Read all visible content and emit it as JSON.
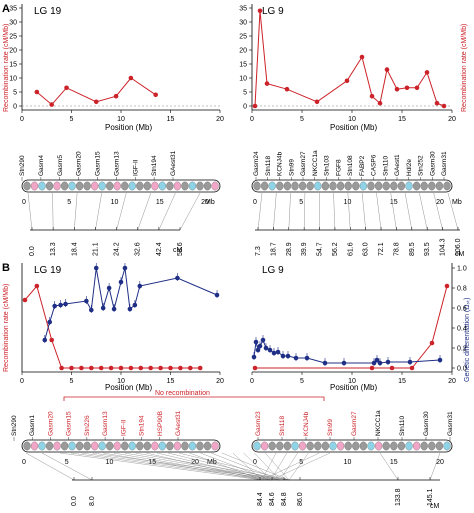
{
  "figure": {
    "panelA": {
      "label": "A",
      "left": {
        "title": "LG 19",
        "ylabel": "Recombination rate (cM/Mb)",
        "xlabel": "Position (Mb)",
        "markers": [
          "Stn290",
          "Gasm4",
          "Gasm5",
          "Gasm20",
          "Gasm15",
          "Gasm13",
          "IGF-II",
          "Stn194",
          "GAest31"
        ],
        "cm": [
          "0.0",
          "13.3",
          "18.4",
          "21.1",
          "24.2",
          "32.6",
          "42.4",
          "58.6"
        ],
        "cm_unit": "cM",
        "mb_unit": "Mb"
      },
      "right": {
        "title": "LG 9",
        "ylabel": "Recombination rate (cM/Mb)",
        "xlabel": "Position (Mb)",
        "markers": [
          "Gasm24",
          "Stn118",
          "KCNJ4b",
          "Stn99",
          "Gasm27",
          "NKCC1a",
          "Stn103",
          "FGF8",
          "Stn108",
          "FABP2",
          "CASP6",
          "Stn110",
          "GAest1",
          "Hdl2e",
          "Stn252",
          "Gasm30",
          "Gasm31"
        ],
        "cm": [
          "7.3",
          "18.7",
          "28.9",
          "39.9",
          "54.7",
          "56.2",
          "61.6",
          "63.0",
          "72.1",
          "78.8",
          "89.5",
          "93.5",
          "104.3",
          "106.0"
        ],
        "cm_unit": "cM",
        "mb_unit": "Mb"
      }
    },
    "panelB": {
      "label": "B",
      "left": {
        "title": "LG 19",
        "ylabel": "Recombination rate (cM/Mb)",
        "xlabel": "Position (Mb)"
      },
      "right": {
        "title": "LG 9",
        "ylabel_right": "Genetic differentiation (Ωₛₜ)",
        "xlabel": "Position (Mb)"
      },
      "no_recombination": "No recombination",
      "markers_left": [
        "Stn290",
        "Gasm1",
        "Gasm20",
        "Gasm15",
        "Stn226",
        "Gasm13",
        "IGF-II",
        "Stn194",
        "HSP90B",
        "GAest31"
      ],
      "markers_right": [
        "Gasm23",
        "Stn118",
        "KCNJ4b",
        "Stn99",
        "Gasm27",
        "NKCC1a",
        "Stn110",
        "Gasm30",
        "Gasm31"
      ],
      "cm": [
        "0.0",
        "8.0",
        "84.4",
        "84.6",
        "84.8",
        "86.0",
        "133.8",
        "145.1"
      ],
      "cm_unit": "cM",
      "mb_unit": "Mb"
    }
  },
  "chart_data": [
    {
      "type": "line",
      "panel": "A",
      "title": "LG 19",
      "xlabel": "Position (Mb)",
      "ylabel": "Recombination rate (cM/Mb)",
      "xlim": [
        0,
        20
      ],
      "ylim": [
        0,
        35
      ],
      "series": [
        {
          "x": [
            1.5,
            3,
            4.5,
            7.5,
            9.5,
            11,
            13.5
          ],
          "y": [
            5,
            0.5,
            6.5,
            1.5,
            3.5,
            10,
            4
          ],
          "color": "#cc2229"
        }
      ]
    },
    {
      "type": "line",
      "panel": "A",
      "title": "LG 9",
      "xlabel": "Position (Mb)",
      "ylabel": "Recombination rate (cM/Mb)",
      "xlim": [
        0,
        20
      ],
      "ylim": [
        0,
        35
      ],
      "series": [
        {
          "x": [
            0.3,
            0.8,
            1.5,
            3.5,
            6.5,
            9.5,
            11,
            12,
            12.8,
            13.5,
            14.5,
            15.5,
            16.5,
            17.5,
            18.5,
            19.2
          ],
          "y": [
            0,
            34,
            8,
            6,
            1.5,
            9,
            17.5,
            3.5,
            1,
            13,
            6,
            6.5,
            6.5,
            12,
            1,
            0
          ],
          "color": "#cc2229"
        }
      ]
    },
    {
      "type": "line",
      "panel": "B",
      "title": "LG 19",
      "xlabel": "Position (Mb)",
      "ylabel": "Recombination rate (cM/Mb)",
      "xlim": [
        0,
        20
      ],
      "series": [
        {
          "name": "Recombination rate",
          "x": [
            0.3,
            1.5,
            3,
            4,
            5,
            6,
            7,
            8,
            9,
            10,
            11,
            12,
            13,
            14,
            15,
            16,
            17,
            18
          ],
          "y": [
            0.68,
            0.82,
            0.28,
            0,
            0,
            0,
            0,
            0,
            0,
            0,
            0,
            0,
            0,
            0,
            0,
            0,
            0,
            0
          ],
          "color": "#cc2229"
        },
        {
          "name": "Genetic differentiation",
          "x": [
            2.3,
            2.8,
            3.3,
            3.9,
            4.4,
            6.5,
            7.0,
            7.5,
            8.2,
            8.8,
            9.3,
            10.0,
            10.4,
            10.9,
            11.4,
            11.9,
            15.7,
            19.7
          ],
          "y": [
            0.28,
            0.46,
            0.62,
            0.63,
            0.64,
            0.67,
            0.58,
            1.0,
            0.6,
            0.8,
            0.59,
            0.86,
            1.0,
            0.59,
            0.63,
            0.82,
            0.9,
            0.73
          ],
          "color": "#1f2f86"
        }
      ]
    },
    {
      "type": "line",
      "panel": "B",
      "title": "LG 9",
      "xlabel": "Position (Mb)",
      "ylabel": "Genetic differentiation (Ωₛₜ)",
      "xlim": [
        0,
        20
      ],
      "ylim": [
        0,
        1.0
      ],
      "series": [
        {
          "name": "Recombination rate",
          "x": [
            0.3,
            12,
            14,
            16,
            18,
            19.5
          ],
          "y": [
            0,
            0,
            0,
            0,
            0.25,
            0.82
          ],
          "color": "#cc2229"
        },
        {
          "name": "Genetic differentiation",
          "x": [
            0.2,
            0.4,
            0.6,
            0.8,
            1.1,
            1.4,
            1.8,
            2.2,
            2.6,
            3.1,
            3.6,
            4.4,
            5.5,
            7.3,
            9.2,
            12.2,
            12.5,
            12.8,
            13.6,
            15.8,
            18.8
          ],
          "y": [
            0.11,
            0.26,
            0.18,
            0.22,
            0.28,
            0.2,
            0.18,
            0.15,
            0.16,
            0.12,
            0.12,
            0.1,
            0.1,
            0.05,
            0.05,
            0.05,
            0.08,
            0.05,
            0.06,
            0.06,
            0.08
          ],
          "color": "#1f2f86"
        }
      ]
    }
  ]
}
